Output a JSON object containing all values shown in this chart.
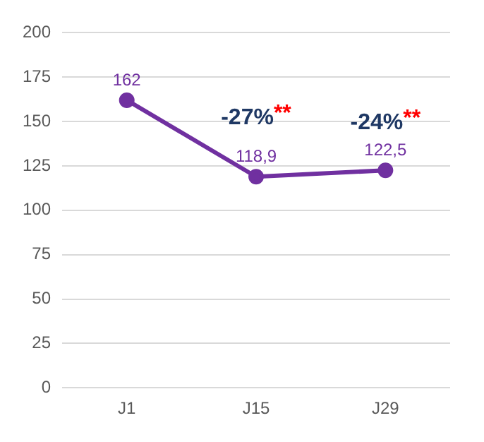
{
  "chart_data": {
    "type": "line",
    "categories": [
      "J1",
      "J15",
      "J29"
    ],
    "series": [
      {
        "color": "#7030a0",
        "values": [
          162,
          118.9,
          122.5
        ],
        "value_labels": [
          "162",
          "118,9",
          "122,5"
        ]
      }
    ],
    "ylim": [
      0,
      200
    ],
    "yticks": [
      0,
      25,
      50,
      75,
      100,
      125,
      150,
      175,
      200
    ],
    "grid": "y",
    "legend": false,
    "marker": "circle",
    "line_style": "solid",
    "annotations": [
      "-27%**",
      "-24%**"
    ]
  }
}
